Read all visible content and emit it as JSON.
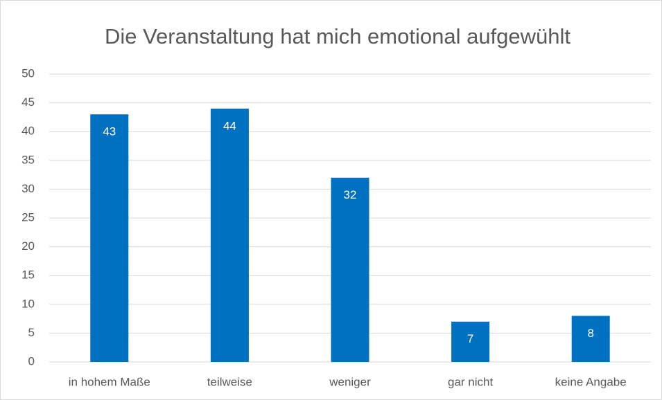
{
  "chart_data": {
    "type": "bar",
    "title": "Die Veranstaltung hat mich emotional aufgewühlt",
    "categories": [
      "in hohem Maße",
      "teilweise",
      "weniger",
      "gar nicht",
      "keine Angabe"
    ],
    "values": [
      43,
      44,
      32,
      7,
      8
    ],
    "color": "#0070c0",
    "ylim": [
      0,
      50
    ],
    "yticks": [
      0,
      5,
      10,
      15,
      20,
      25,
      30,
      35,
      40,
      45,
      50
    ],
    "grid": true
  }
}
